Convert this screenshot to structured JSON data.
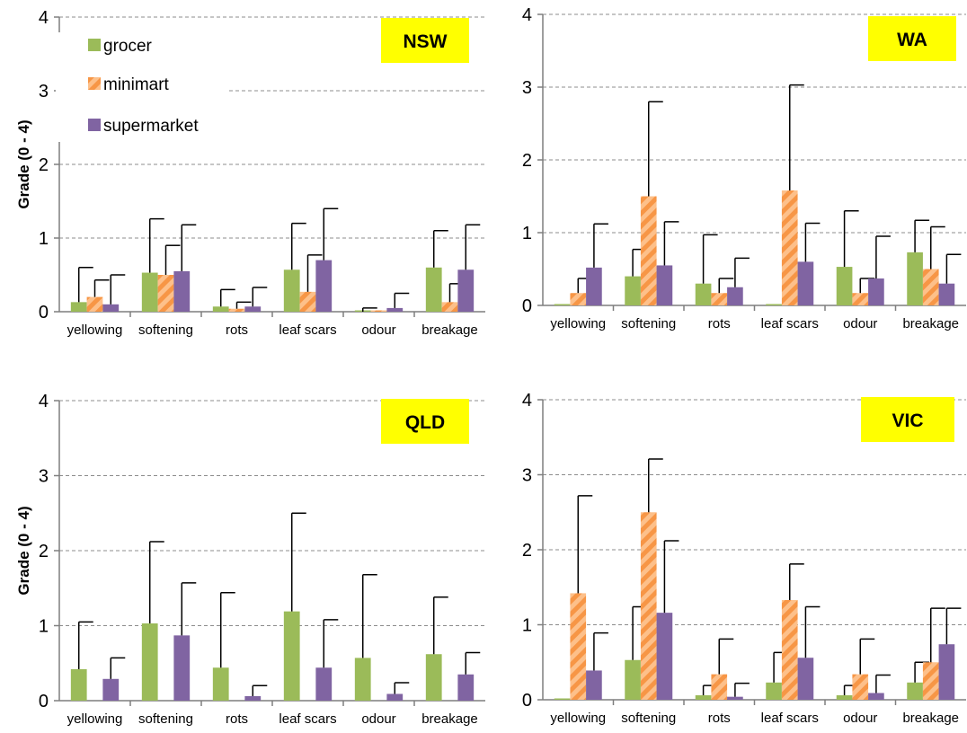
{
  "colors": {
    "grocer": "#9bbb59",
    "minimart": "#f79646",
    "minimart_stripe": "#fdc08a",
    "supermarket": "#8064a2",
    "state_label_bg": "#ffff00",
    "grid": "#8c8c8c",
    "axis": "#7f7f7f",
    "error_bar": "#000000"
  },
  "legend": [
    {
      "key": "grocer",
      "label": "grocer"
    },
    {
      "key": "minimart",
      "label": "minimart"
    },
    {
      "key": "supermarket",
      "label": "supermarket"
    }
  ],
  "chart_data": [
    {
      "type": "bar",
      "panel_label": "NSW",
      "categories": [
        "yellowing",
        "softening",
        "rots",
        "leaf scars",
        "odour",
        "breakage"
      ],
      "ylabel": "Grade (0 - 4)",
      "ylim": [
        0,
        4
      ],
      "yticks": [
        0,
        1,
        2,
        3,
        4
      ],
      "grid": true,
      "series": [
        {
          "name": "grocer",
          "values": [
            0.13,
            0.53,
            0.07,
            0.57,
            0.0,
            0.6
          ],
          "error_top": [
            0.6,
            1.26,
            0.3,
            1.2,
            0.05,
            1.1
          ]
        },
        {
          "name": "minimart",
          "values": [
            0.2,
            0.5,
            0.04,
            0.27,
            0.0,
            0.13
          ],
          "error_top": [
            0.43,
            0.9,
            0.13,
            0.77,
            0.0,
            0.38
          ]
        },
        {
          "name": "supermarket",
          "values": [
            0.1,
            0.55,
            0.07,
            0.7,
            0.05,
            0.57
          ],
          "error_top": [
            0.5,
            1.18,
            0.33,
            1.4,
            0.25,
            1.18
          ]
        }
      ]
    },
    {
      "type": "bar",
      "panel_label": "WA",
      "categories": [
        "yellowing",
        "softening",
        "rots",
        "leaf scars",
        "odour",
        "breakage"
      ],
      "ylabel": "",
      "ylim": [
        0,
        4
      ],
      "yticks": [
        0,
        1,
        2,
        3,
        4
      ],
      "grid": true,
      "series": [
        {
          "name": "grocer",
          "values": [
            0.0,
            0.4,
            0.3,
            0.0,
            0.53,
            0.73
          ],
          "error_top": [
            0.0,
            0.77,
            0.97,
            0.0,
            1.3,
            1.17
          ]
        },
        {
          "name": "minimart",
          "values": [
            0.17,
            1.5,
            0.17,
            1.58,
            0.17,
            0.5
          ],
          "error_top": [
            0.37,
            2.8,
            0.37,
            3.03,
            0.37,
            1.08
          ]
        },
        {
          "name": "supermarket",
          "values": [
            0.52,
            0.55,
            0.25,
            0.6,
            0.37,
            0.3
          ],
          "error_top": [
            1.12,
            1.15,
            0.65,
            1.13,
            0.95,
            0.7
          ]
        }
      ]
    },
    {
      "type": "bar",
      "panel_label": "QLD",
      "categories": [
        "yellowing",
        "softening",
        "rots",
        "leaf scars",
        "odour",
        "breakage"
      ],
      "ylabel": "Grade (0 - 4)",
      "ylim": [
        0,
        4
      ],
      "yticks": [
        0,
        1,
        2,
        3,
        4
      ],
      "grid": true,
      "series": [
        {
          "name": "grocer",
          "values": [
            0.42,
            1.03,
            0.44,
            1.19,
            0.57,
            0.62
          ],
          "error_top": [
            1.05,
            2.12,
            1.44,
            2.5,
            1.68,
            1.38
          ]
        },
        {
          "name": "minimart",
          "values": [
            0,
            0,
            0,
            0,
            0,
            0
          ],
          "error_top": [
            0,
            0,
            0,
            0,
            0,
            0
          ]
        },
        {
          "name": "supermarket",
          "values": [
            0.29,
            0.87,
            0.06,
            0.44,
            0.09,
            0.35
          ],
          "error_top": [
            0.57,
            1.57,
            0.2,
            1.08,
            0.24,
            0.64
          ]
        }
      ]
    },
    {
      "type": "bar",
      "panel_label": "VIC",
      "categories": [
        "yellowing",
        "softening",
        "rots",
        "leaf scars",
        "odour",
        "breakage"
      ],
      "ylabel": "",
      "ylim": [
        0,
        4
      ],
      "yticks": [
        0,
        1,
        2,
        3,
        4
      ],
      "grid": true,
      "series": [
        {
          "name": "grocer",
          "values": [
            0.0,
            0.53,
            0.06,
            0.23,
            0.06,
            0.23
          ],
          "error_top": [
            0.0,
            1.24,
            0.19,
            0.63,
            0.19,
            0.5
          ]
        },
        {
          "name": "minimart",
          "values": [
            1.42,
            2.5,
            0.34,
            1.33,
            0.34,
            0.5
          ],
          "error_top": [
            2.72,
            3.21,
            0.81,
            1.81,
            0.81,
            1.22
          ]
        },
        {
          "name": "supermarket",
          "values": [
            0.39,
            1.16,
            0.04,
            0.56,
            0.09,
            0.74
          ],
          "error_top": [
            0.89,
            2.12,
            0.22,
            1.24,
            0.33,
            1.22
          ]
        }
      ]
    }
  ]
}
